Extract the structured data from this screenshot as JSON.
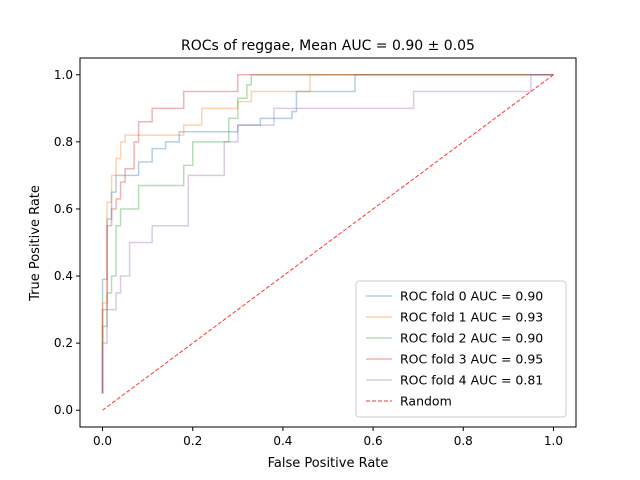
{
  "chart_data": {
    "type": "line",
    "title": "ROCs of reggae, Mean AUC = 0.90 ± 0.05",
    "xlabel": "False Positive Rate",
    "ylabel": "True Positive Rate",
    "xlim": [
      -0.05,
      1.05
    ],
    "ylim": [
      -0.05,
      1.05
    ],
    "xticks": [
      "0.0",
      "0.2",
      "0.4",
      "0.6",
      "0.8",
      "1.0"
    ],
    "yticks": [
      "0.0",
      "0.2",
      "0.4",
      "0.6",
      "0.8",
      "1.0"
    ],
    "grid": false,
    "legend_position": "lower-right",
    "series": [
      {
        "name": "ROC fold 0 AUC = 0.90",
        "color": "#1f77b4",
        "points": [
          [
            0,
            0.05
          ],
          [
            0,
            0.39
          ],
          [
            0.01,
            0.39
          ],
          [
            0.01,
            0.57
          ],
          [
            0.02,
            0.57
          ],
          [
            0.02,
            0.65
          ],
          [
            0.03,
            0.65
          ],
          [
            0.03,
            0.7
          ],
          [
            0.08,
            0.7
          ],
          [
            0.08,
            0.74
          ],
          [
            0.11,
            0.74
          ],
          [
            0.11,
            0.78
          ],
          [
            0.14,
            0.78
          ],
          [
            0.14,
            0.8
          ],
          [
            0.17,
            0.8
          ],
          [
            0.17,
            0.83
          ],
          [
            0.3,
            0.83
          ],
          [
            0.3,
            0.85
          ],
          [
            0.35,
            0.85
          ],
          [
            0.35,
            0.87
          ],
          [
            0.42,
            0.87
          ],
          [
            0.42,
            0.89
          ],
          [
            0.43,
            0.89
          ],
          [
            0.43,
            0.95
          ],
          [
            0.56,
            0.95
          ],
          [
            0.56,
            1.0
          ],
          [
            1.0,
            1.0
          ]
        ]
      },
      {
        "name": "ROC fold 1 AUC = 0.93",
        "color": "#ff7f0e",
        "points": [
          [
            0,
            0.05
          ],
          [
            0,
            0.32
          ],
          [
            0.01,
            0.32
          ],
          [
            0.01,
            0.62
          ],
          [
            0.02,
            0.62
          ],
          [
            0.02,
            0.7
          ],
          [
            0.03,
            0.7
          ],
          [
            0.03,
            0.75
          ],
          [
            0.04,
            0.75
          ],
          [
            0.04,
            0.8
          ],
          [
            0.05,
            0.8
          ],
          [
            0.05,
            0.82
          ],
          [
            0.18,
            0.82
          ],
          [
            0.18,
            0.85
          ],
          [
            0.22,
            0.85
          ],
          [
            0.22,
            0.9
          ],
          [
            0.3,
            0.9
          ],
          [
            0.3,
            0.92
          ],
          [
            0.33,
            0.92
          ],
          [
            0.33,
            0.95
          ],
          [
            0.46,
            0.95
          ],
          [
            0.46,
            1.0
          ],
          [
            1.0,
            1.0
          ]
        ]
      },
      {
        "name": "ROC fold 2 AUC = 0.90",
        "color": "#2ca02c",
        "points": [
          [
            0,
            0.05
          ],
          [
            0,
            0.25
          ],
          [
            0.01,
            0.25
          ],
          [
            0.01,
            0.35
          ],
          [
            0.02,
            0.35
          ],
          [
            0.02,
            0.4
          ],
          [
            0.03,
            0.4
          ],
          [
            0.03,
            0.55
          ],
          [
            0.04,
            0.55
          ],
          [
            0.04,
            0.6
          ],
          [
            0.08,
            0.6
          ],
          [
            0.08,
            0.67
          ],
          [
            0.18,
            0.67
          ],
          [
            0.18,
            0.73
          ],
          [
            0.2,
            0.73
          ],
          [
            0.2,
            0.8
          ],
          [
            0.28,
            0.8
          ],
          [
            0.28,
            0.87
          ],
          [
            0.3,
            0.87
          ],
          [
            0.3,
            0.93
          ],
          [
            0.32,
            0.93
          ],
          [
            0.32,
            0.97
          ],
          [
            0.33,
            0.97
          ],
          [
            0.33,
            1.0
          ],
          [
            1.0,
            1.0
          ]
        ]
      },
      {
        "name": "ROC fold 3 AUC = 0.95",
        "color": "#d62728",
        "points": [
          [
            0,
            0.05
          ],
          [
            0,
            0.3
          ],
          [
            0.01,
            0.3
          ],
          [
            0.01,
            0.55
          ],
          [
            0.02,
            0.55
          ],
          [
            0.02,
            0.6
          ],
          [
            0.03,
            0.6
          ],
          [
            0.03,
            0.63
          ],
          [
            0.04,
            0.63
          ],
          [
            0.04,
            0.68
          ],
          [
            0.05,
            0.68
          ],
          [
            0.05,
            0.72
          ],
          [
            0.07,
            0.72
          ],
          [
            0.07,
            0.8
          ],
          [
            0.08,
            0.8
          ],
          [
            0.08,
            0.86
          ],
          [
            0.11,
            0.86
          ],
          [
            0.11,
            0.9
          ],
          [
            0.18,
            0.9
          ],
          [
            0.18,
            0.95
          ],
          [
            0.3,
            0.95
          ],
          [
            0.3,
            1.0
          ],
          [
            1.0,
            1.0
          ]
        ]
      },
      {
        "name": "ROC fold 4 AUC = 0.81",
        "color": "#9467bd",
        "points": [
          [
            0,
            0.05
          ],
          [
            0,
            0.2
          ],
          [
            0.01,
            0.2
          ],
          [
            0.01,
            0.3
          ],
          [
            0.03,
            0.3
          ],
          [
            0.03,
            0.35
          ],
          [
            0.04,
            0.35
          ],
          [
            0.04,
            0.4
          ],
          [
            0.06,
            0.4
          ],
          [
            0.06,
            0.5
          ],
          [
            0.11,
            0.5
          ],
          [
            0.11,
            0.55
          ],
          [
            0.19,
            0.55
          ],
          [
            0.19,
            0.7
          ],
          [
            0.27,
            0.7
          ],
          [
            0.27,
            0.8
          ],
          [
            0.3,
            0.8
          ],
          [
            0.3,
            0.85
          ],
          [
            0.38,
            0.85
          ],
          [
            0.38,
            0.9
          ],
          [
            0.69,
            0.9
          ],
          [
            0.69,
            0.95
          ],
          [
            0.95,
            0.95
          ],
          [
            0.95,
            1.0
          ],
          [
            1.0,
            1.0
          ]
        ]
      },
      {
        "name": "Random",
        "color": "#ff0000",
        "dashed": true,
        "points": [
          [
            0,
            0
          ],
          [
            1,
            1
          ]
        ]
      }
    ]
  }
}
